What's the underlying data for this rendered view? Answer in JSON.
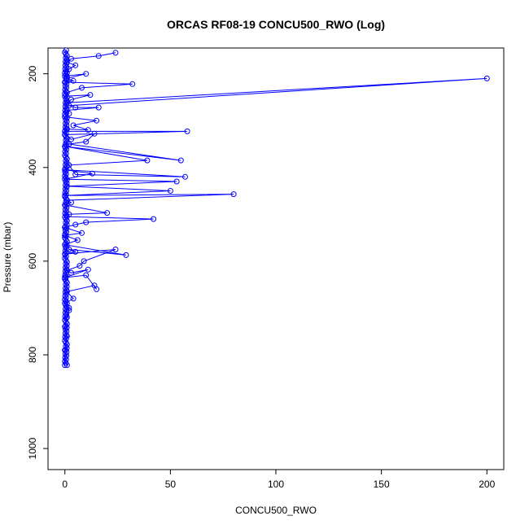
{
  "chart_data": {
    "type": "line",
    "title": "ORCAS RF08-19 CONCU500_RWO (Log)",
    "xlabel": "CONCU500_RWO",
    "ylabel": "Pressure (mbar)",
    "xlim": [
      -8,
      208
    ],
    "ylim": [
      1045,
      145
    ],
    "y_reversed": true,
    "x_ticks": [
      "0",
      "50",
      "100",
      "150",
      "200"
    ],
    "y_ticks": [
      "200",
      "400",
      "600",
      "800",
      "1000"
    ],
    "grid": false,
    "color": "#0000ff",
    "series": [
      {
        "x": [
          24,
          16,
          3,
          1,
          5,
          2,
          1,
          0,
          10,
          1,
          4,
          0,
          32,
          8,
          1,
          0,
          12,
          3,
          1,
          200,
          2,
          5,
          16,
          1,
          2,
          0,
          15,
          4,
          11,
          1,
          0,
          58,
          0,
          3,
          14,
          10,
          2,
          55,
          0,
          39,
          2,
          5,
          57,
          0,
          13,
          0,
          53,
          1,
          50,
          0,
          80,
          1,
          3,
          0,
          20,
          2,
          1,
          42,
          10,
          5,
          0,
          8,
          0,
          6,
          0,
          29,
          2,
          5,
          0,
          24,
          9,
          7,
          1,
          3,
          11,
          0,
          10,
          15,
          14,
          1,
          4,
          0,
          2,
          2,
          1,
          0,
          1,
          0,
          0
        ],
        "y": [
          155,
          162,
          168,
          175,
          182,
          190,
          198,
          205,
          200,
          210,
          215,
          218,
          222,
          230,
          240,
          248,
          245,
          255,
          262,
          210,
          268,
          272,
          272,
          278,
          285,
          292,
          300,
          310,
          320,
          318,
          323,
          323,
          330,
          340,
          328,
          345,
          350,
          385,
          355,
          385,
          395,
          415,
          420,
          405,
          413,
          425,
          430,
          440,
          450,
          460,
          457,
          470,
          475,
          480,
          497,
          500,
          505,
          510,
          517,
          522,
          528,
          540,
          545,
          555,
          565,
          587,
          575,
          580,
          585,
          575,
          600,
          610,
          620,
          625,
          618,
          635,
          630,
          660,
          652,
          665,
          680,
          690,
          700,
          705,
          720,
          740,
          760,
          790,
          822
        ]
      }
    ]
  }
}
